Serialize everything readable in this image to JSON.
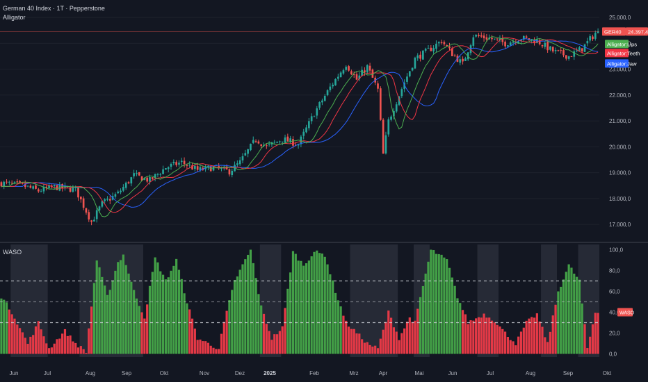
{
  "header": {
    "title": "German 40 Index · 1T · Pepperstone",
    "main_indicator": "Alligator",
    "sub_indicator": "WASO"
  },
  "colors": {
    "background": "#131722",
    "bull": "#26a69a",
    "bear": "#ef5350",
    "lips": "#4caf50",
    "teeth": "#f23645",
    "jaw": "#2962ff",
    "hist_bull": "#43a047",
    "hist_bear": "#e53946",
    "shade": "#2a2e39"
  },
  "chart_data": [
    {
      "type": "candlestick",
      "y_ticks": [
        "17.000,0",
        "18.000,0",
        "19.000,0",
        "20.000,0",
        "21.000,0",
        "22.000,0",
        "23.000,0",
        "24.000,0",
        "25.000,0"
      ],
      "y_values": [
        17000,
        18000,
        19000,
        20000,
        21000,
        22000,
        23000,
        24000,
        25000
      ],
      "x_ticks": [
        "Jun",
        "Jul",
        "Aug",
        "Sep",
        "Okt",
        "Nov",
        "Dez",
        "2025",
        "Feb",
        "Mrz",
        "Apr",
        "Mai",
        "Jun",
        "Jul",
        "Aug",
        "Sep",
        "Okt"
      ],
      "last_price": "24.397,4",
      "symbol": "GER40",
      "legend": [
        "Alligator:Lips",
        "Alligator:Teeth",
        "Alligator:Jaw"
      ],
      "ylim": [
        16600,
        25300
      ],
      "price_path": [
        [
          0,
          18600
        ],
        [
          8,
          18500
        ],
        [
          14,
          18300
        ],
        [
          20,
          18450
        ],
        [
          28,
          18350
        ],
        [
          34,
          17100
        ],
        [
          38,
          17800
        ],
        [
          44,
          18200
        ],
        [
          50,
          18900
        ],
        [
          56,
          18700
        ],
        [
          62,
          19200
        ],
        [
          68,
          19400
        ],
        [
          74,
          19100
        ],
        [
          80,
          19200
        ],
        [
          86,
          19050
        ],
        [
          90,
          19400
        ],
        [
          96,
          20300
        ],
        [
          100,
          20000
        ],
        [
          106,
          20300
        ],
        [
          112,
          20100
        ],
        [
          118,
          21300
        ],
        [
          124,
          22300
        ],
        [
          130,
          23200
        ],
        [
          134,
          22600
        ],
        [
          138,
          23100
        ],
        [
          142,
          22200
        ],
        [
          144,
          19700
        ],
        [
          146,
          21000
        ],
        [
          152,
          22500
        ],
        [
          156,
          23400
        ],
        [
          162,
          23800
        ],
        [
          166,
          24100
        ],
        [
          170,
          23600
        ],
        [
          174,
          23200
        ],
        [
          178,
          24300
        ],
        [
          184,
          24200
        ],
        [
          190,
          24000
        ],
        [
          196,
          24200
        ],
        [
          202,
          24100
        ],
        [
          208,
          23700
        ],
        [
          214,
          23500
        ],
        [
          219,
          23800
        ],
        [
          224,
          24400
        ]
      ]
    },
    {
      "type": "bar",
      "y_ticks": [
        "0,0",
        "20,0",
        "40,0",
        "60,0",
        "80,0",
        "100,0"
      ],
      "y_values": [
        0,
        20,
        40,
        60,
        80,
        100
      ],
      "ylim": [
        -3,
        105
      ],
      "levels": [
        30,
        50,
        70
      ],
      "current_label": "WASO",
      "current_value": 40,
      "shade_ranges": [
        [
          4,
          18
        ],
        [
          30,
          54
        ],
        [
          98,
          106
        ],
        [
          132,
          150
        ],
        [
          156,
          162
        ],
        [
          180,
          188
        ],
        [
          204,
          210
        ],
        [
          218,
          226
        ]
      ],
      "value_path": [
        [
          0,
          55
        ],
        [
          4,
          40
        ],
        [
          10,
          10
        ],
        [
          14,
          30
        ],
        [
          18,
          5
        ],
        [
          24,
          22
        ],
        [
          28,
          10
        ],
        [
          32,
          2
        ],
        [
          36,
          90
        ],
        [
          40,
          55
        ],
        [
          44,
          88
        ],
        [
          46,
          95
        ],
        [
          50,
          60
        ],
        [
          54,
          35
        ],
        [
          58,
          92
        ],
        [
          62,
          70
        ],
        [
          66,
          90
        ],
        [
          70,
          50
        ],
        [
          74,
          15
        ],
        [
          78,
          10
        ],
        [
          82,
          5
        ],
        [
          84,
          30
        ],
        [
          88,
          70
        ],
        [
          94,
          100
        ],
        [
          98,
          45
        ],
        [
          102,
          15
        ],
        [
          106,
          25
        ],
        [
          110,
          98
        ],
        [
          114,
          85
        ],
        [
          118,
          98
        ],
        [
          122,
          95
        ],
        [
          126,
          60
        ],
        [
          130,
          30
        ],
        [
          134,
          20
        ],
        [
          138,
          10
        ],
        [
          142,
          5
        ],
        [
          146,
          40
        ],
        [
          150,
          15
        ],
        [
          154,
          35
        ],
        [
          156,
          30
        ],
        [
          162,
          100
        ],
        [
          168,
          90
        ],
        [
          172,
          55
        ],
        [
          176,
          30
        ],
        [
          182,
          38
        ],
        [
          186,
          32
        ],
        [
          190,
          20
        ],
        [
          194,
          10
        ],
        [
          198,
          30
        ],
        [
          202,
          38
        ],
        [
          206,
          10
        ],
        [
          210,
          60
        ],
        [
          214,
          85
        ],
        [
          218,
          70
        ],
        [
          221,
          5
        ],
        [
          224,
          40
        ]
      ]
    }
  ]
}
